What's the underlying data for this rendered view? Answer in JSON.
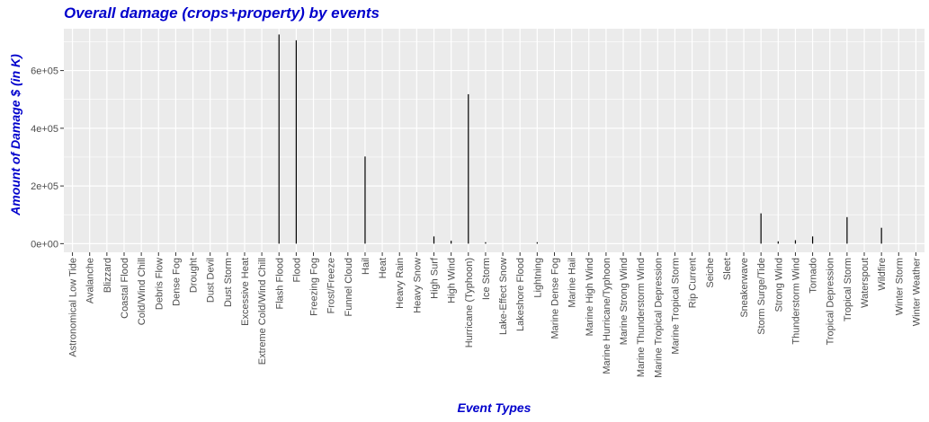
{
  "colors": {
    "title": "#0000cc",
    "panel": "#ebebeb",
    "grid": "#ffffff",
    "bar": "#000000",
    "tick_text": "#4d4d4d"
  },
  "chart_data": {
    "type": "bar",
    "title": "Overall damage (crops+property) by events",
    "xlabel": "Event Types",
    "ylabel": "Amount of Damage $ (in K)",
    "ylim": [
      -30000,
      745000
    ],
    "yticks": [
      0,
      200000,
      400000,
      600000
    ],
    "ytick_labels": [
      "0e+00",
      "2e+05",
      "4e+05",
      "6e+05"
    ],
    "grid": true,
    "categories": [
      "Astronomical Low Tide",
      "Avalanche",
      "Blizzard",
      "Coastal Flood",
      "Cold/Wind Chill",
      "Debris Flow",
      "Dense Fog",
      "Drought",
      "Dust Devil",
      "Dust Storm",
      "Excessive Heat",
      "Extreme Cold/Wind Chill",
      "Flash Flood",
      "Flood",
      "Freezing Fog",
      "Frost/Freeze",
      "Funnel Cloud",
      "Hail",
      "Heat",
      "Heavy Rain",
      "Heavy Snow",
      "High Surf",
      "High Wind",
      "Hurricane (Typhoon)",
      "Ice Storm",
      "Lake-Effect Snow",
      "Lakeshore Flood",
      "Lightning",
      "Marine Dense Fog",
      "Marine Hail",
      "Marine High Wind",
      "Marine Hurricane/Typhoon",
      "Marine Strong Wind",
      "Marine Thunderstorm Wind",
      "Marine Tropical Depression",
      "Marine Tropical Storm",
      "Rip Current",
      "Seiche",
      "Sleet",
      "Sneakerwave",
      "Storm Surge/Tide",
      "Strong Wind",
      "Thunderstorm Wind",
      "Tornado",
      "Tropical Depression",
      "Tropical Storm",
      "Waterspout",
      "Wildfire",
      "Winter Storm",
      "Winter Weather"
    ],
    "values": [
      0,
      0,
      0,
      0,
      0,
      0,
      0,
      0,
      0,
      0,
      0,
      0,
      725000,
      705000,
      0,
      0,
      0,
      302000,
      0,
      0,
      0,
      25000,
      10000,
      518000,
      5000,
      0,
      0,
      5000,
      0,
      0,
      0,
      0,
      0,
      0,
      0,
      0,
      0,
      0,
      0,
      0,
      105000,
      8000,
      12000,
      25000,
      0,
      92000,
      0,
      55000,
      0,
      0
    ]
  }
}
